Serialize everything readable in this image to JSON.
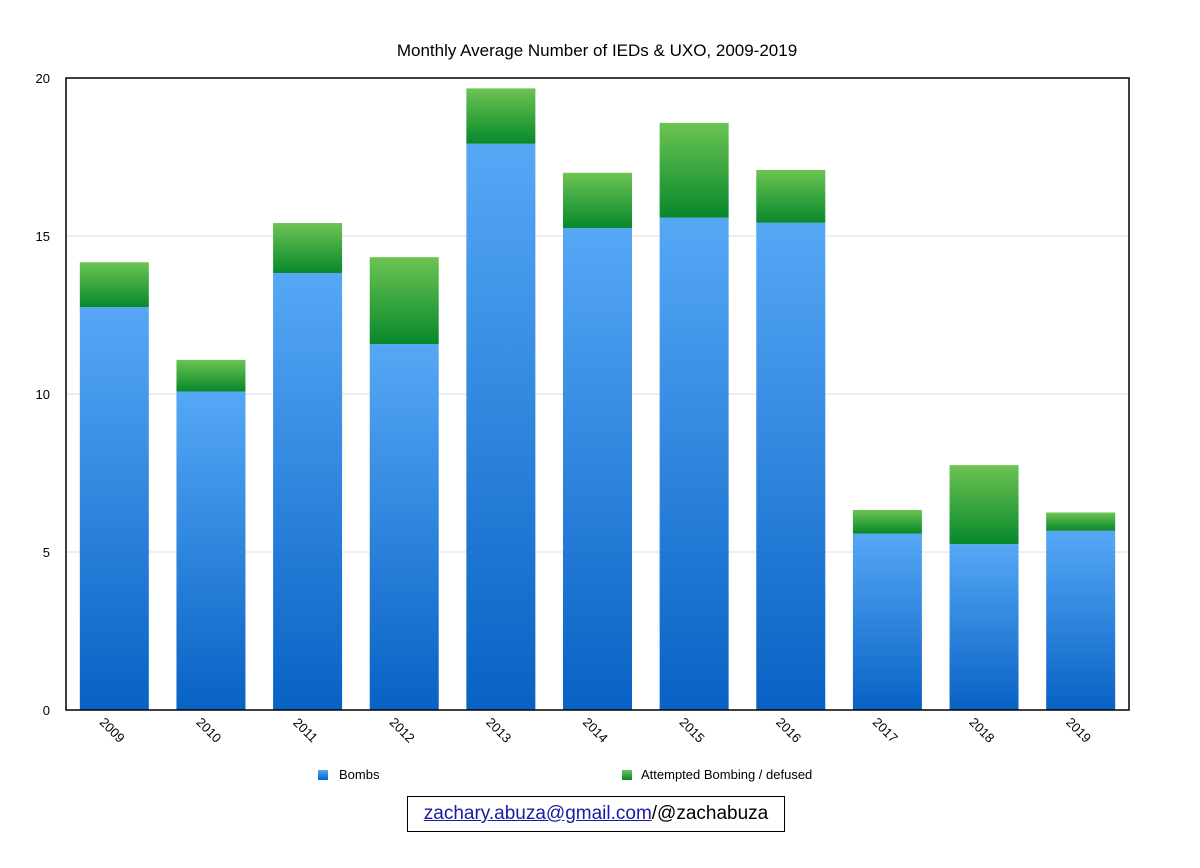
{
  "chart_data": {
    "type": "bar",
    "stacked": true,
    "title": "Monthly Average Number of IEDs & UXO, 2009-2019",
    "xlabel": "",
    "ylabel": "",
    "categories": [
      "2009",
      "2010",
      "2011",
      "2012",
      "2013",
      "2014",
      "2015",
      "2016",
      "2017",
      "2018",
      "2019"
    ],
    "series": [
      {
        "name": "Bombs",
        "color": "#2b86e0",
        "values": [
          12.75,
          10.08,
          13.83,
          11.58,
          17.92,
          15.25,
          15.58,
          15.42,
          5.58,
          5.25,
          5.67
        ]
      },
      {
        "name": "Attempted Bombing / defused",
        "color": "#23a032",
        "values": [
          1.42,
          1.0,
          1.58,
          2.75,
          1.75,
          1.75,
          3.0,
          1.67,
          0.75,
          2.5,
          0.58
        ]
      }
    ],
    "ylim": [
      0,
      20
    ],
    "yticks": [
      0,
      5,
      10,
      15,
      20
    ],
    "grid": true,
    "legend": "bottom"
  },
  "credit": {
    "email": "zachary.abuza@gmail.com",
    "handle": "/@zachabuza"
  }
}
